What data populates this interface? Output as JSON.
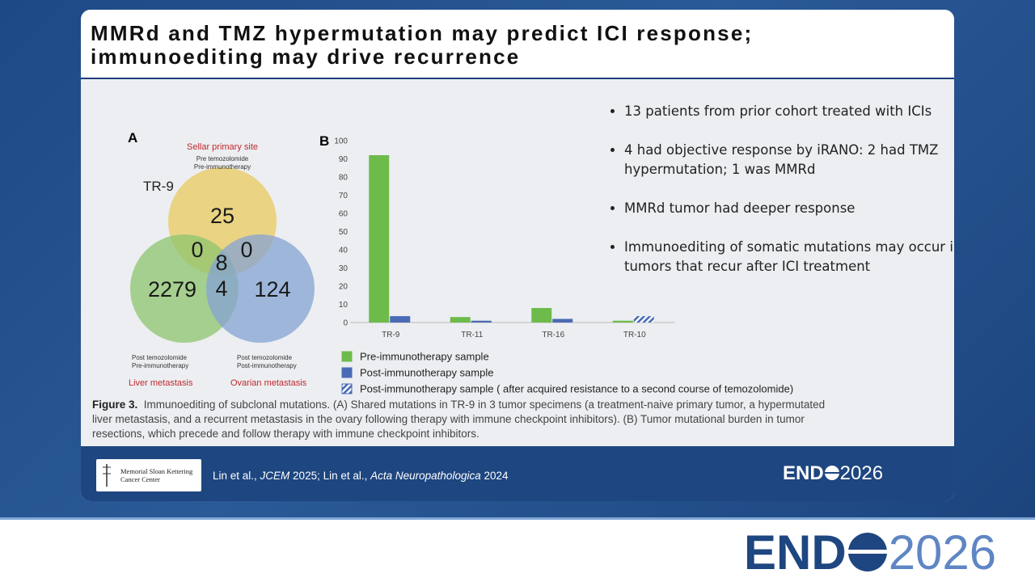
{
  "slide": {
    "title": [
      "MMRd and TMZ hypermutation may predict ICI response;",
      "immunoediting may drive recurrence"
    ],
    "bullets": [
      "13 patients from prior cohort treated with ICIs",
      "4 had objective response by iRANO: 2 had TMZ hypermutation; 1 was MMRd",
      "MMRd tumor had deeper response",
      "Immunoediting of somatic mutations may occur in tumors that recur after ICI treatment"
    ]
  },
  "venn": {
    "panel": "A",
    "case": "TR-9",
    "sets": [
      {
        "name": "Sellar primary site",
        "notes": [
          "Pre temozolomide",
          "Pre-immunotherapy"
        ],
        "color": "#e9c95c"
      },
      {
        "name": "Liver metastasis",
        "notes": [
          "Post temozolomide",
          "Pre-immunotherapy"
        ],
        "color": "#8ec46e"
      },
      {
        "name": "Ovarian metastasis",
        "notes": [
          "Post temozolomide",
          "Post-immunotherapy"
        ],
        "color": "#86a3d3"
      }
    ],
    "regions": {
      "primary_only": "25",
      "liver_only": "2279",
      "ovary_only": "124",
      "primary_liver": "0",
      "primary_ovary": "0",
      "all_three": "8",
      "liver_ovary": "4"
    }
  },
  "chart_data": {
    "type": "bar",
    "panel": "B",
    "categories": [
      "TR-9",
      "TR-11",
      "TR-16",
      "TR-10"
    ],
    "series": [
      {
        "name": "Pre-immunotherapy sample",
        "color": "#6dbb4a",
        "values": [
          92,
          3,
          8,
          1
        ]
      },
      {
        "name": "Post-immunotherapy sample",
        "color": "#4a6bb5",
        "values": [
          3.5,
          1,
          2,
          null
        ]
      },
      {
        "name": "Post-immunotherapy sample ( after acquired resistance to a second course of temozolomide)",
        "color": "#4a6bb5",
        "pattern": "hatch",
        "values": [
          null,
          null,
          null,
          3.5
        ]
      }
    ],
    "ylim": [
      0,
      100
    ],
    "yticks": [
      0,
      10,
      20,
      30,
      40,
      50,
      60,
      70,
      80,
      90,
      100
    ]
  },
  "caption": {
    "label": "Figure 3.",
    "text": "Immunoediting of subclonal mutations. (A) Shared mutations in TR-9 in 3 tumor specimens (a treatment-naive primary tumor, a hypermutated liver metastasis, and a recurrent metastasis in the ovary following therapy with immune checkpoint inhibitors). (B) Tumor mutational burden in tumor resections, which precede and follow therapy with immune checkpoint inhibitors."
  },
  "footer": {
    "logo_text": [
      "Memorial Sloan Kettering",
      "Cancer Center"
    ],
    "citation": [
      {
        "text": "Lin et al., ",
        "italic": false
      },
      {
        "text": "JCEM",
        "italic": true
      },
      {
        "text": " 2025; Lin et al., ",
        "italic": false
      },
      {
        "text": "Acta Neuropathologica",
        "italic": true
      },
      {
        "text": " 2024",
        "italic": false
      }
    ],
    "brand": {
      "left": "END",
      "right": "2026"
    }
  }
}
